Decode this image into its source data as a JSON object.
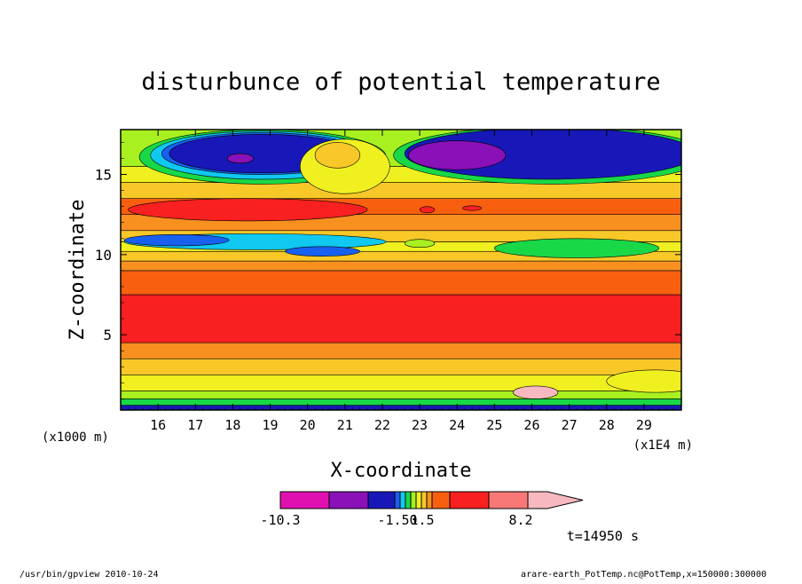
{
  "chart_data": {
    "type": "heatmap",
    "title": "disturbunce of potential temperature",
    "xlabel": "X-coordinate",
    "ylabel": "Z-coordinate",
    "x_unit_left": "(x1000 m)",
    "x_unit_right": "(x1E4 m)",
    "xlim": [
      15.0,
      30.0
    ],
    "ylim": [
      0.3,
      17.8
    ],
    "x_ticks": [
      "16",
      "17",
      "18",
      "19",
      "20",
      "21",
      "22",
      "23",
      "24",
      "25",
      "26",
      "27",
      "28",
      "29"
    ],
    "y_ticks": [
      "5",
      "10",
      "15"
    ],
    "time_label": "t=14950 s",
    "colorbar": {
      "tick_labels": [
        "-10.3",
        "-1.50",
        "1.5",
        "8.2"
      ],
      "colors": [
        "#e010b0",
        "#8a10b8",
        "#1818b8",
        "#1860f0",
        "#10c8f0",
        "#18d848",
        "#a8f020",
        "#f0f020",
        "#f8c828",
        "#f89020",
        "#f86010",
        "#f82020",
        "#f87878",
        "#f8b8c0"
      ]
    },
    "bands": [
      {
        "z": [
          0.3,
          0.6
        ],
        "color": "#1818b8"
      },
      {
        "z": [
          0.6,
          1.0
        ],
        "color": "#18d848"
      },
      {
        "z": [
          1.0,
          1.5
        ],
        "color": "#a8f020"
      },
      {
        "z": [
          1.5,
          2.5
        ],
        "color": "#f0f020"
      },
      {
        "z": [
          2.5,
          3.5
        ],
        "color": "#f8c828"
      },
      {
        "z": [
          3.5,
          4.5
        ],
        "color": "#f89020"
      },
      {
        "z": [
          4.5,
          7.5
        ],
        "color": "#f82020"
      },
      {
        "z": [
          7.5,
          9.0
        ],
        "color": "#f86010"
      },
      {
        "z": [
          9.0,
          9.6
        ],
        "color": "#f89020"
      },
      {
        "z": [
          9.6,
          10.2
        ],
        "color": "#f8c828"
      },
      {
        "z": [
          10.2,
          10.8
        ],
        "color": "#f0f020"
      },
      {
        "z": [
          10.8,
          11.5
        ],
        "color": "#f8c828"
      },
      {
        "z": [
          11.5,
          12.5
        ],
        "color": "#f89020"
      },
      {
        "z": [
          12.5,
          13.5
        ],
        "color": "#f86010"
      },
      {
        "z": [
          13.5,
          14.5
        ],
        "color": "#f8c828"
      },
      {
        "z": [
          14.5,
          15.5
        ],
        "color": "#f0f020"
      },
      {
        "z": [
          15.5,
          17.8
        ],
        "color": "#a8f020"
      }
    ],
    "blobs": [
      {
        "cx": 18.8,
        "cz": 16.1,
        "rx": 3.3,
        "rz": 1.7,
        "color": "#18d848"
      },
      {
        "cx": 18.8,
        "cz": 16.2,
        "rx": 3.0,
        "rz": 1.5,
        "color": "#10c8f0"
      },
      {
        "cx": 18.8,
        "cz": 16.3,
        "rx": 2.7,
        "rz": 1.3,
        "color": "#1860f0"
      },
      {
        "cx": 18.8,
        "cz": 16.3,
        "rx": 2.5,
        "rz": 1.2,
        "color": "#1818b8"
      },
      {
        "cx": 18.2,
        "cz": 16.0,
        "rx": 0.35,
        "rz": 0.3,
        "color": "#8a10b8"
      },
      {
        "cx": 26.5,
        "cz": 16.2,
        "rx": 4.2,
        "rz": 1.8,
        "color": "#18d848"
      },
      {
        "cx": 26.5,
        "cz": 16.3,
        "rx": 3.9,
        "rz": 1.6,
        "color": "#1818b8"
      },
      {
        "cx": 24.0,
        "cz": 16.2,
        "rx": 1.3,
        "rz": 0.9,
        "color": "#8a10b8"
      },
      {
        "cx": 21.0,
        "cz": 15.5,
        "rx": 1.2,
        "rz": 1.7,
        "color": "#f0f020"
      },
      {
        "cx": 20.8,
        "cz": 16.2,
        "rx": 0.6,
        "rz": 0.8,
        "color": "#f8c828"
      },
      {
        "cx": 18.4,
        "cz": 12.8,
        "rx": 3.2,
        "rz": 0.7,
        "color": "#f82020"
      },
      {
        "cx": 23.2,
        "cz": 12.8,
        "rx": 0.2,
        "rz": 0.2,
        "color": "#f82020"
      },
      {
        "cx": 24.4,
        "cz": 12.9,
        "rx": 0.25,
        "rz": 0.15,
        "color": "#f82020"
      },
      {
        "cx": 18.6,
        "cz": 10.8,
        "rx": 3.5,
        "rz": 0.5,
        "color": "#10c8f0"
      },
      {
        "cx": 16.5,
        "cz": 10.9,
        "rx": 1.4,
        "rz": 0.35,
        "color": "#1860f0"
      },
      {
        "cx": 20.4,
        "cz": 10.2,
        "rx": 1.0,
        "rz": 0.3,
        "color": "#1860f0"
      },
      {
        "cx": 23.0,
        "cz": 10.7,
        "rx": 0.4,
        "rz": 0.25,
        "color": "#a8f020"
      },
      {
        "cx": 27.2,
        "cz": 10.4,
        "rx": 2.2,
        "rz": 0.6,
        "color": "#18d848"
      },
      {
        "cx": 29.3,
        "cz": 2.1,
        "rx": 1.3,
        "rz": 0.7,
        "color": "#f0f020"
      },
      {
        "cx": 26.1,
        "cz": 1.4,
        "rx": 0.6,
        "rz": 0.4,
        "color": "#f8b8c0"
      }
    ]
  },
  "footer": {
    "left": "/usr/bin/gpview   2010-10-24",
    "right": "arare-earth_PotTemp.nc@PotTemp,x=150000:300000"
  }
}
